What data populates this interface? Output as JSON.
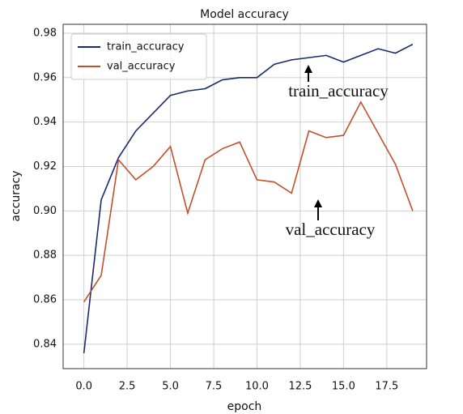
{
  "chart_data": {
    "type": "line",
    "title": "Model accuracy",
    "xlabel": "epoch",
    "ylabel": "accuracy",
    "x": [
      0,
      1,
      2,
      3,
      4,
      5,
      6,
      7,
      8,
      9,
      10,
      11,
      12,
      13,
      14,
      15,
      16,
      17,
      18,
      19
    ],
    "series": [
      {
        "name": "train_accuracy",
        "color": "#1b2a6b",
        "values": [
          0.836,
          0.905,
          0.924,
          0.936,
          0.944,
          0.952,
          0.954,
          0.955,
          0.959,
          0.96,
          0.96,
          0.966,
          0.968,
          0.969,
          0.97,
          0.967,
          0.97,
          0.973,
          0.971,
          0.975
        ]
      },
      {
        "name": "val_accuracy",
        "color": "#c2502c",
        "values": [
          0.859,
          0.871,
          0.923,
          0.914,
          0.92,
          0.929,
          0.899,
          0.923,
          0.928,
          0.931,
          0.914,
          0.913,
          0.908,
          0.936,
          0.933,
          0.934,
          0.949,
          0.935,
          0.921,
          0.9
        ]
      }
    ],
    "xlim": [
      -1.2,
      19.8
    ],
    "ylim": [
      0.829,
      0.984
    ],
    "xticks": [
      {
        "value": 0,
        "label": "0.0"
      },
      {
        "value": 2.5,
        "label": "2.5"
      },
      {
        "value": 5,
        "label": "5.0"
      },
      {
        "value": 7.5,
        "label": "7.5"
      },
      {
        "value": 10,
        "label": "10.0"
      },
      {
        "value": 12.5,
        "label": "12.5"
      },
      {
        "value": 15,
        "label": "15.0"
      },
      {
        "value": 17.5,
        "label": "17.5"
      }
    ],
    "yticks": [
      0.84,
      0.86,
      0.88,
      {
        "value": 0.9,
        "label": "0.90"
      },
      0.92,
      0.94,
      0.96,
      0.98
    ],
    "grid": true,
    "legend": "upper left",
    "annotations": [
      {
        "text": "train_accuracy"
      },
      {
        "text": "val_accuracy"
      }
    ]
  }
}
